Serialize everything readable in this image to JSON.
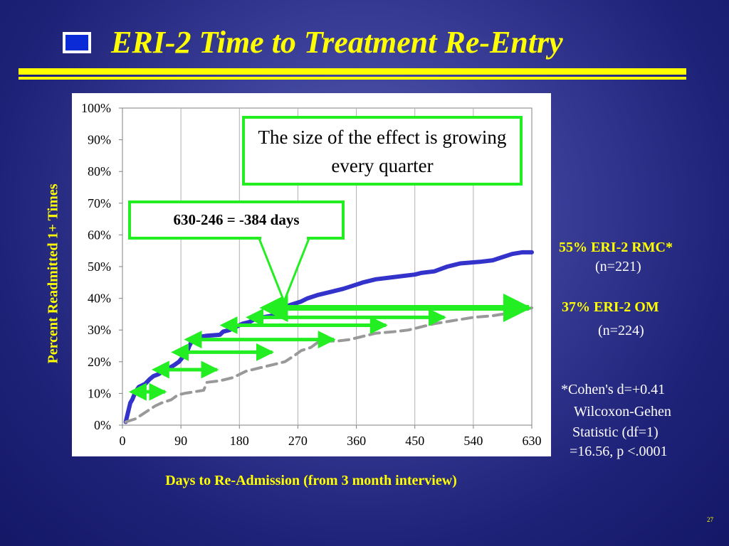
{
  "slide": {
    "title": "ERI-2 Time to Treatment Re-Entry",
    "page_number": "27",
    "title_color": "#ffff00",
    "accent_color": "#22ee22"
  },
  "annotations": {
    "effect_box": "The size of the effect is growing every quarter",
    "difference_box": "630-246 = -384 days",
    "rmc_label": "55% ERI-2 RMC*",
    "rmc_n": "(n=221)",
    "om_label": "37% ERI-2 OM",
    "om_n": "(n=224)",
    "stats_line1": "*Cohen's d=+0.41",
    "stats_line2": "Wilcoxon-Gehen",
    "stats_line3": "Statistic (df=1)",
    "stats_line4": "=16.56, p <.0001"
  },
  "chart_data": {
    "type": "line",
    "xlabel": "Days to Re-Admission (from 3 month interview)",
    "ylabel": "Percent Readmitted 1+ Times",
    "xlim": [
      0,
      630
    ],
    "ylim": [
      0,
      100
    ],
    "x_ticks": [
      "0",
      "90",
      "180",
      "270",
      "360",
      "450",
      "540",
      "630"
    ],
    "y_ticks": [
      "0%",
      "10%",
      "20%",
      "30%",
      "40%",
      "50%",
      "60%",
      "70%",
      "80%",
      "90%",
      "100%"
    ],
    "grid": "vertical",
    "series": [
      {
        "name": "ERI-2 RMC",
        "color": "#3333cc",
        "dash": "solid",
        "points": [
          [
            5,
            1
          ],
          [
            12,
            7
          ],
          [
            15,
            8
          ],
          [
            20,
            10.5
          ],
          [
            25,
            12
          ],
          [
            35,
            13
          ],
          [
            42,
            14.5
          ],
          [
            48,
            15.5
          ],
          [
            55,
            16
          ],
          [
            63,
            17
          ],
          [
            72,
            18
          ],
          [
            80,
            19
          ],
          [
            87,
            20
          ],
          [
            95,
            22
          ],
          [
            100,
            23.5
          ],
          [
            103,
            25
          ],
          [
            108,
            27
          ],
          [
            118,
            27.8
          ],
          [
            130,
            28.2
          ],
          [
            150,
            28.5
          ],
          [
            155,
            29.5
          ],
          [
            165,
            30
          ],
          [
            175,
            31
          ],
          [
            185,
            32
          ],
          [
            195,
            32.5
          ],
          [
            205,
            33.5
          ],
          [
            215,
            34
          ],
          [
            230,
            34.5
          ],
          [
            240,
            35
          ],
          [
            246,
            37
          ],
          [
            260,
            38
          ],
          [
            275,
            39
          ],
          [
            285,
            40
          ],
          [
            300,
            41
          ],
          [
            320,
            42
          ],
          [
            340,
            43
          ],
          [
            355,
            44
          ],
          [
            370,
            45
          ],
          [
            390,
            46
          ],
          [
            410,
            46.5
          ],
          [
            430,
            47
          ],
          [
            450,
            47.5
          ],
          [
            460,
            48
          ],
          [
            480,
            48.5
          ],
          [
            500,
            50
          ],
          [
            520,
            51
          ],
          [
            550,
            51.5
          ],
          [
            570,
            52
          ],
          [
            585,
            53
          ],
          [
            600,
            54
          ],
          [
            615,
            54.5
          ],
          [
            630,
            54.5
          ]
        ]
      },
      {
        "name": "ERI-2 OM",
        "color": "#999999",
        "dash": "dashed",
        "points": [
          [
            5,
            1
          ],
          [
            20,
            2
          ],
          [
            35,
            4
          ],
          [
            50,
            6
          ],
          [
            60,
            7
          ],
          [
            75,
            8
          ],
          [
            85,
            9.5
          ],
          [
            95,
            10
          ],
          [
            110,
            10.5
          ],
          [
            125,
            11
          ],
          [
            130,
            13.5
          ],
          [
            150,
            14
          ],
          [
            170,
            15
          ],
          [
            190,
            17
          ],
          [
            210,
            18
          ],
          [
            230,
            19
          ],
          [
            250,
            20
          ],
          [
            265,
            22
          ],
          [
            275,
            23.5
          ],
          [
            290,
            24.5
          ],
          [
            300,
            26
          ],
          [
            310,
            26.5
          ],
          [
            330,
            26.5
          ],
          [
            350,
            27
          ],
          [
            370,
            28
          ],
          [
            390,
            29
          ],
          [
            420,
            29.5
          ],
          [
            440,
            30
          ],
          [
            450,
            30.5
          ],
          [
            480,
            32
          ],
          [
            510,
            33
          ],
          [
            540,
            34
          ],
          [
            570,
            34.5
          ],
          [
            600,
            35.5
          ],
          [
            630,
            37
          ]
        ]
      }
    ],
    "difference_arrows": [
      {
        "y": 10.5,
        "x_start": 30,
        "x_end": 70
      },
      {
        "y": 17.5,
        "x_start": 65,
        "x_end": 150
      },
      {
        "y": 23,
        "x_start": 95,
        "x_end": 235
      },
      {
        "y": 27,
        "x_start": 115,
        "x_end": 330
      },
      {
        "y": 31.5,
        "x_start": 170,
        "x_end": 410
      },
      {
        "y": 34,
        "x_start": 210,
        "x_end": 500
      },
      {
        "y": 37,
        "x_start": 246,
        "x_end": 630
      }
    ]
  }
}
